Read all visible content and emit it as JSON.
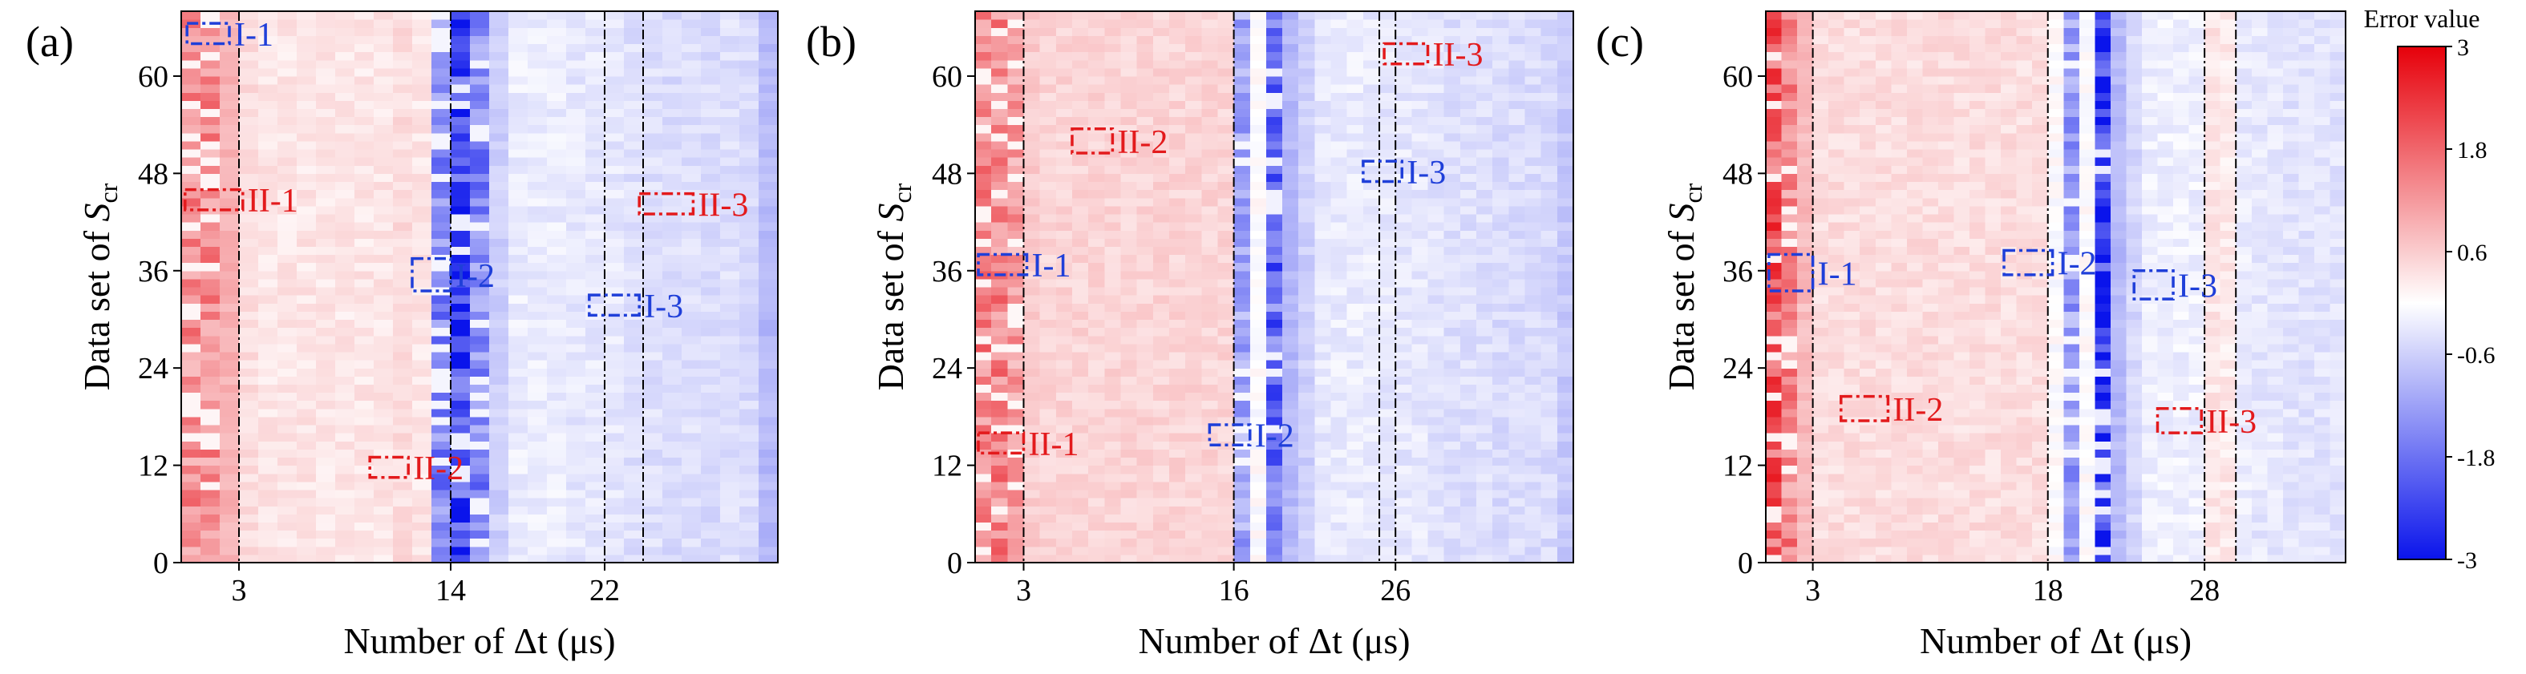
{
  "figure": {
    "colorbar": {
      "title": "Error value",
      "ticks": [
        "3",
        "1.8",
        "0.6",
        "-0.6",
        "-1.8",
        "-3"
      ],
      "min": -3,
      "max": 3
    },
    "colors": {
      "red": "#e31a1c",
      "blue": "#1f3fd9",
      "axis": "#000000"
    }
  },
  "chart_data": [
    {
      "type": "heatmap",
      "panel_label": "(a)",
      "xlabel": "Number of Δt (μs)",
      "ylabel": "Data set of S",
      "ylabel_subscript": "cr",
      "ncols": 31,
      "nrows": 68,
      "xticks": [
        3,
        14,
        22
      ],
      "yticks": [
        0,
        12,
        24,
        36,
        48,
        60
      ],
      "ylim": [
        0,
        68
      ],
      "dash_lines": [
        3,
        14,
        22,
        24
      ],
      "column_pattern": [
        1.4,
        1.4,
        0.9,
        0.4,
        0.3,
        0.3,
        0.3,
        0.3,
        0.3,
        0.3,
        0.3,
        0.4,
        0.3,
        -1.6,
        -2.6,
        -1.6,
        -0.6,
        -0.25,
        -0.25,
        -0.25,
        -0.3,
        -0.3,
        -0.3,
        -0.4,
        -0.4,
        -0.45,
        -0.4,
        -0.45,
        -0.4,
        -0.45,
        -0.9
      ],
      "boxes": [
        {
          "label": "I-1",
          "color": "blue",
          "x0": 0.3,
          "x1": 2.5,
          "y0": 64.0,
          "y1": 66.5
        },
        {
          "label": "II-1",
          "color": "red",
          "x0": 0.2,
          "x1": 3.2,
          "y0": 43.5,
          "y1": 46.0
        },
        {
          "label": "I-2",
          "color": "blue",
          "x0": 12.0,
          "x1": 14.0,
          "y0": 33.5,
          "y1": 37.5
        },
        {
          "label": "II-2",
          "color": "red",
          "x0": 9.8,
          "x1": 11.8,
          "y0": 10.5,
          "y1": 13.0
        },
        {
          "label": "I-3",
          "color": "blue",
          "x0": 21.2,
          "x1": 23.8,
          "y0": 30.5,
          "y1": 33.0
        },
        {
          "label": "II-3",
          "color": "red",
          "x0": 23.8,
          "x1": 26.6,
          "y0": 43.0,
          "y1": 45.5
        }
      ]
    },
    {
      "type": "heatmap",
      "panel_label": "(b)",
      "xlabel": "Number of Δt (μs)",
      "ylabel": "Data set of S",
      "ylabel_subscript": "cr",
      "ncols": 37,
      "nrows": 68,
      "xticks": [
        3,
        16,
        26
      ],
      "yticks": [
        0,
        12,
        24,
        36,
        48,
        60
      ],
      "ylim": [
        0,
        68
      ],
      "dash_lines": [
        3,
        16,
        25,
        26
      ],
      "column_pattern": [
        1.5,
        1.5,
        1.2,
        0.6,
        0.5,
        0.5,
        0.5,
        0.5,
        0.5,
        0.5,
        0.5,
        0.5,
        0.5,
        0.5,
        0.5,
        0.5,
        -1.2,
        0.0,
        -2.0,
        -0.9,
        -0.6,
        -0.3,
        -0.25,
        -0.25,
        -0.25,
        -0.3,
        -0.3,
        -0.3,
        -0.35,
        -0.4,
        -0.4,
        -0.4,
        -0.45,
        -0.45,
        -0.45,
        -0.45,
        -0.7
      ],
      "boxes": [
        {
          "label": "II-3",
          "color": "red",
          "x0": 25.3,
          "x1": 28.0,
          "y0": 61.5,
          "y1": 64.0
        },
        {
          "label": "II-2",
          "color": "red",
          "x0": 6.0,
          "x1": 8.5,
          "y0": 50.5,
          "y1": 53.5
        },
        {
          "label": "I-3",
          "color": "blue",
          "x0": 24.0,
          "x1": 26.4,
          "y0": 47.0,
          "y1": 49.5
        },
        {
          "label": "I-1",
          "color": "blue",
          "x0": 0.2,
          "x1": 3.2,
          "y0": 35.5,
          "y1": 38.0
        },
        {
          "label": "II-1",
          "color": "red",
          "x0": 0.2,
          "x1": 3.0,
          "y0": 13.5,
          "y1": 16.0
        },
        {
          "label": "I-2",
          "color": "blue",
          "x0": 14.5,
          "x1": 17.0,
          "y0": 14.5,
          "y1": 17.0
        }
      ]
    },
    {
      "type": "heatmap",
      "panel_label": "(c)",
      "xlabel": "Number of Δt (μs)",
      "ylabel": "Data set of S",
      "ylabel_subscript": "cr",
      "ncols": 37,
      "nrows": 68,
      "xticks": [
        3,
        18,
        28
      ],
      "yticks": [
        0,
        12,
        24,
        36,
        48,
        60
      ],
      "ylim": [
        0,
        68
      ],
      "dash_lines": [
        3,
        18,
        28,
        30
      ],
      "column_pattern": [
        2.0,
        1.5,
        0.8,
        0.4,
        0.4,
        0.4,
        0.4,
        0.4,
        0.4,
        0.4,
        0.4,
        0.4,
        0.4,
        0.4,
        0.4,
        0.4,
        0.4,
        0.4,
        0.0,
        -1.3,
        0.0,
        -2.8,
        -0.9,
        -0.5,
        -0.2,
        -0.2,
        -0.2,
        -0.2,
        0.3,
        0.25,
        -0.25,
        -0.3,
        -0.3,
        -0.35,
        -0.35,
        -0.35,
        -0.35
      ],
      "boxes": [
        {
          "label": "I-1",
          "color": "blue",
          "x0": 0.2,
          "x1": 3.0,
          "y0": 33.5,
          "y1": 38.0
        },
        {
          "label": "I-2",
          "color": "blue",
          "x0": 15.2,
          "x1": 18.3,
          "y0": 35.5,
          "y1": 38.5
        },
        {
          "label": "I-3",
          "color": "blue",
          "x0": 23.5,
          "x1": 26.0,
          "y0": 32.5,
          "y1": 36.0
        },
        {
          "label": "II-2",
          "color": "red",
          "x0": 4.8,
          "x1": 7.8,
          "y0": 17.5,
          "y1": 20.5
        },
        {
          "label": "II-3",
          "color": "red",
          "x0": 25.0,
          "x1": 27.8,
          "y0": 16.0,
          "y1": 19.0
        }
      ]
    }
  ]
}
